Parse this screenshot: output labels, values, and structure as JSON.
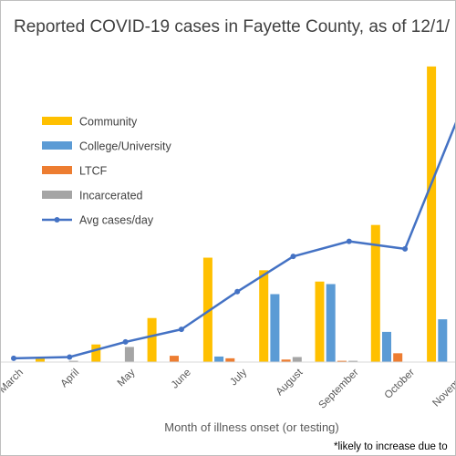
{
  "chart_data": {
    "type": "bar",
    "title": "Reported COVID-19 cases in Fayette County, as of 12/1/",
    "xlabel": "Month of illness onset (or testing)",
    "footnote": "*likely to increase due to",
    "categories": [
      "March",
      "April",
      "May",
      "June",
      "July",
      "August",
      "September",
      "October",
      "November"
    ],
    "series": [
      {
        "name": "Community",
        "kind": "bar",
        "color": "#FFC000",
        "values": [
          40,
          20,
          70,
          175,
          415,
          365,
          320,
          545,
          1175
        ]
      },
      {
        "name": "College/University",
        "kind": "bar",
        "color": "#5B9BD5",
        "values": [
          0,
          0,
          0,
          0,
          22,
          270,
          310,
          120,
          170
        ]
      },
      {
        "name": "LTCF",
        "kind": "bar",
        "color": "#ED7D31",
        "values": [
          0,
          0,
          0,
          25,
          15,
          10,
          5,
          35,
          0
        ]
      },
      {
        "name": "Incarcerated",
        "kind": "bar",
        "color": "#A5A5A5",
        "values": [
          0,
          5,
          60,
          0,
          0,
          20,
          5,
          0,
          0
        ]
      },
      {
        "name": "Avg cases/day",
        "kind": "line",
        "color": "#4472C4",
        "values": [
          1.5,
          2,
          8,
          13,
          28,
          42,
          48,
          45,
          100
        ]
      }
    ],
    "ylim": [
      0,
      1200
    ],
    "y2lim": [
      0,
      120
    ],
    "grid": false,
    "legend_position": "top-left"
  }
}
